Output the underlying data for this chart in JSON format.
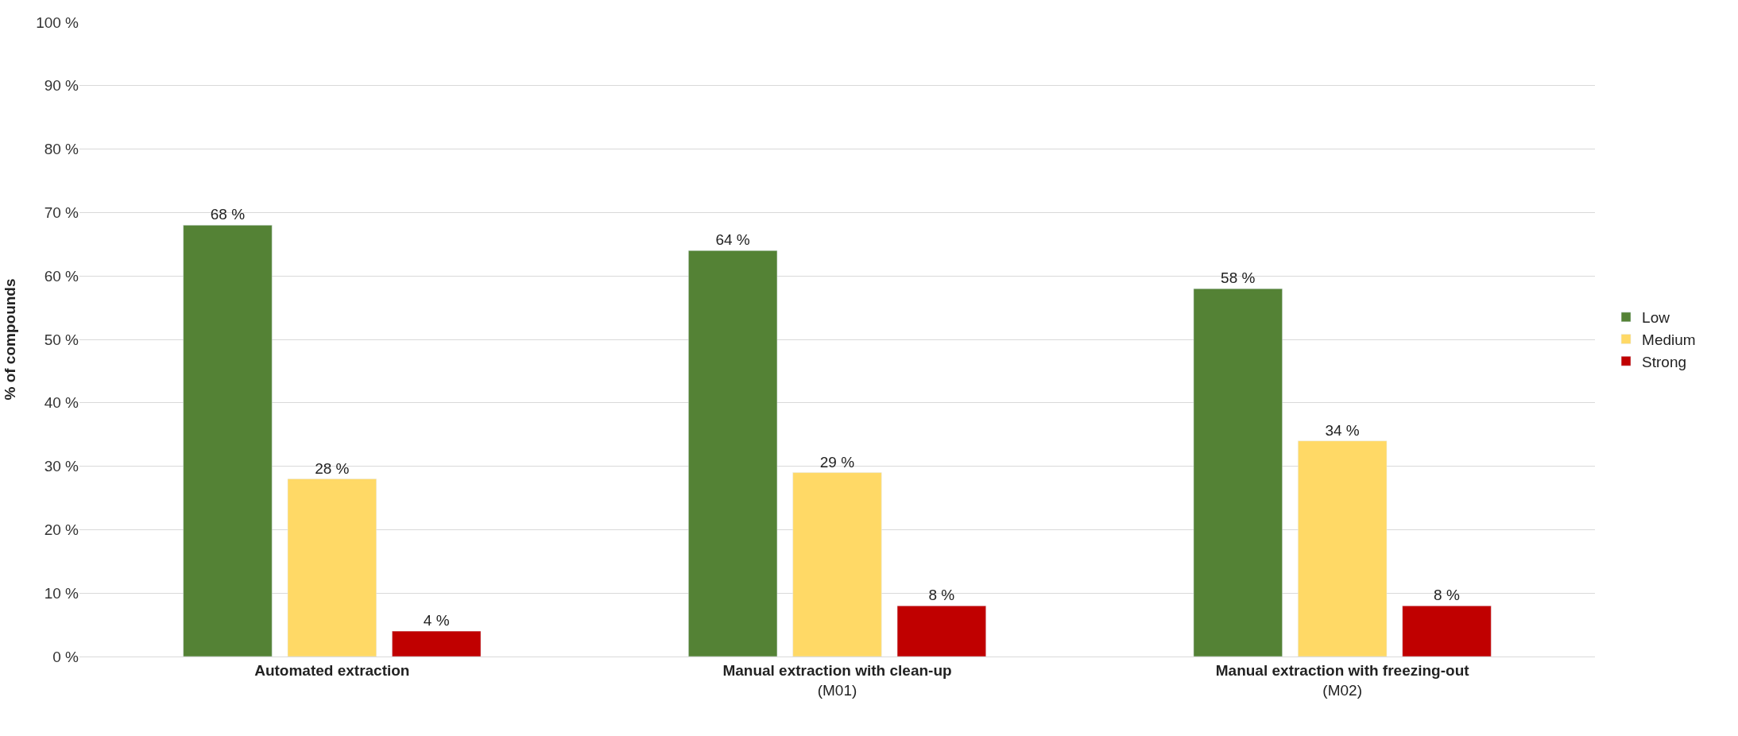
{
  "chart_data": {
    "type": "bar",
    "ylabel": "% of compounds",
    "categories": [
      "Automated extraction",
      "Manual extraction with clean-up\n(M01)",
      "Manual extraction with freezing-out\n(M02)"
    ],
    "series": [
      {
        "name": "Low",
        "color": "#548235",
        "values": [
          68,
          64,
          58
        ],
        "value_labels": [
          "68 %",
          "64 %",
          "58 %"
        ]
      },
      {
        "name": "Medium",
        "color": "#ffd966",
        "values": [
          28,
          29,
          34
        ],
        "value_labels": [
          "28 %",
          "29 %",
          "34 %"
        ]
      },
      {
        "name": "Strong",
        "color": "#c00000",
        "values": [
          4,
          8,
          8
        ],
        "value_labels": [
          "4 %",
          "8 %",
          "8 %"
        ]
      }
    ],
    "ylim": [
      0,
      100
    ],
    "yticks": [
      {
        "value": 0,
        "label": "0 %"
      },
      {
        "value": 10,
        "label": "10 %"
      },
      {
        "value": 20,
        "label": "20 %"
      },
      {
        "value": 30,
        "label": "30 %"
      },
      {
        "value": 40,
        "label": "40 %"
      },
      {
        "value": 50,
        "label": "50 %"
      },
      {
        "value": 60,
        "label": "60 %"
      },
      {
        "value": 70,
        "label": "70 %"
      },
      {
        "value": 80,
        "label": "80 %"
      },
      {
        "value": 90,
        "label": "90 %"
      },
      {
        "value": 100,
        "label": "100 %"
      }
    ],
    "grid": "y",
    "legend": "right"
  }
}
